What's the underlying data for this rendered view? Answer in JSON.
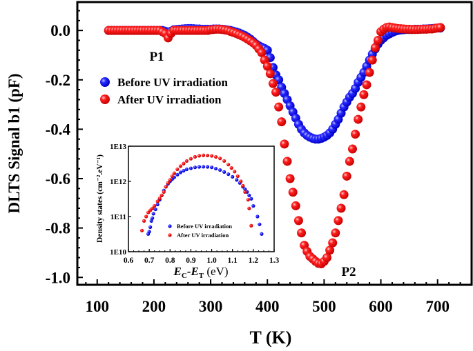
{
  "chart_data": [
    {
      "type": "scatter",
      "xlabel": "T (K)",
      "ylabel": "DLTS Signal b1 (pF)",
      "xlim": [
        65,
        760
      ],
      "ylim": [
        -1.03,
        0.115
      ],
      "xticks": [
        100,
        200,
        300,
        400,
        500,
        600,
        700
      ],
      "xtick_labels": [
        "100",
        "200",
        "300",
        "400",
        "500",
        "600",
        "700"
      ],
      "yticks": [
        0.0,
        -0.2,
        -0.4,
        -0.6,
        -0.8,
        -1.0
      ],
      "ytick_labels": [
        "0.0",
        "-0.2",
        "-0.4",
        "-0.6",
        "-0.8",
        "-1.0"
      ],
      "grid": false,
      "legend_position": "upper-left",
      "annotations": [
        {
          "text": "P1",
          "x": 225,
          "y": -0.1
        },
        {
          "text": "P2",
          "x": 530,
          "y": -0.96
        }
      ],
      "x": [
        120,
        125,
        130,
        135,
        140,
        145,
        150,
        155,
        160,
        165,
        170,
        175,
        180,
        185,
        190,
        195,
        200,
        205,
        210,
        215,
        220,
        225,
        230,
        235,
        240,
        245,
        250,
        255,
        260,
        265,
        270,
        275,
        280,
        285,
        290,
        295,
        300,
        305,
        310,
        315,
        320,
        325,
        330,
        335,
        340,
        345,
        350,
        355,
        360,
        365,
        370,
        375,
        380,
        385,
        390,
        395,
        400,
        405,
        410,
        415,
        420,
        425,
        430,
        435,
        440,
        445,
        450,
        455,
        460,
        465,
        470,
        475,
        480,
        485,
        490,
        495,
        500,
        505,
        510,
        515,
        520,
        525,
        530,
        535,
        540,
        545,
        550,
        555,
        560,
        565,
        570,
        575,
        580,
        585,
        590,
        595,
        600,
        605,
        610,
        615,
        620,
        625,
        630,
        635,
        640,
        645,
        650,
        655,
        660,
        665,
        670,
        675,
        680,
        685,
        690,
        695,
        700,
        705
      ],
      "series": [
        {
          "name": "Before UV irradiation",
          "color": "#1a1aff",
          "values": [
            0,
            0,
            0,
            0,
            0,
            0,
            0,
            0,
            0,
            0,
            0,
            0,
            0,
            0,
            0,
            0,
            0,
            0,
            0,
            0,
            -0.003,
            -0.008,
            -0.003,
            0.003,
            0.004,
            0.005,
            0.006,
            0.007,
            0.008,
            0.008,
            0.007,
            0.006,
            0.006,
            0.005,
            0.005,
            0.005,
            0.005,
            0.006,
            0.006,
            0.006,
            0.005,
            0.004,
            0.002,
            0,
            -0.003,
            -0.006,
            -0.01,
            -0.015,
            -0.02,
            -0.027,
            -0.035,
            -0.045,
            -0.055,
            -0.062,
            -0.068,
            -0.073,
            -0.08,
            -0.11,
            -0.15,
            -0.18,
            -0.2,
            -0.23,
            -0.255,
            -0.28,
            -0.305,
            -0.33,
            -0.355,
            -0.38,
            -0.4,
            -0.415,
            -0.425,
            -0.432,
            -0.437,
            -0.44,
            -0.44,
            -0.437,
            -0.432,
            -0.425,
            -0.415,
            -0.4,
            -0.38,
            -0.36,
            -0.335,
            -0.31,
            -0.29,
            -0.27,
            -0.255,
            -0.235,
            -0.21,
            -0.19,
            -0.17,
            -0.145,
            -0.12,
            -0.096,
            -0.075,
            -0.055,
            -0.04,
            -0.03,
            -0.02,
            -0.014,
            -0.008,
            -0.003,
            0,
            0.002,
            0.003,
            0.004,
            0.004,
            0.004,
            0.005,
            0.005,
            0.005,
            0.006,
            0.006,
            0.007,
            0.008,
            0.009,
            0.01,
            0.01
          ]
        },
        {
          "name": "After UV irradiation",
          "color": "#ff1a1a",
          "values": [
            0,
            0,
            0,
            0,
            0,
            0,
            0,
            0,
            0,
            0,
            0,
            0,
            0,
            0,
            0,
            0,
            0,
            0,
            0,
            -0.005,
            -0.012,
            -0.03,
            -0.012,
            0,
            0,
            0,
            0,
            0,
            0,
            0,
            0,
            0,
            0,
            0,
            0,
            0,
            0.003,
            0.004,
            0.005,
            0.005,
            0.004,
            0.002,
            0,
            -0.004,
            -0.008,
            -0.012,
            -0.017,
            -0.022,
            -0.028,
            -0.035,
            -0.042,
            -0.05,
            -0.06,
            -0.075,
            -0.09,
            -0.12,
            -0.145,
            -0.175,
            -0.215,
            -0.25,
            -0.31,
            -0.37,
            -0.46,
            -0.53,
            -0.6,
            -0.655,
            -0.71,
            -0.77,
            -0.82,
            -0.87,
            -0.895,
            -0.915,
            -0.925,
            -0.935,
            -0.943,
            -0.945,
            -0.935,
            -0.92,
            -0.89,
            -0.86,
            -0.82,
            -0.77,
            -0.72,
            -0.665,
            -0.59,
            -0.53,
            -0.48,
            -0.42,
            -0.36,
            -0.31,
            -0.26,
            -0.22,
            -0.17,
            -0.12,
            -0.07,
            -0.04,
            -0.005,
            0.005,
            0.012,
            0.014,
            0.012,
            0.01,
            0.008,
            0.007,
            0.006,
            0.005,
            0.005,
            0.004,
            0.004,
            0.004,
            0.005,
            0.005,
            0.005,
            0.006,
            0.006,
            0.008,
            0.01,
            0.012
          ]
        }
      ]
    },
    {
      "type": "scatter",
      "inset": true,
      "xlabel_parts": {
        "e1": "E",
        "sub1": "C",
        "dash": "-",
        "e2": "E",
        "sub2": "T",
        "unit": " (eV)"
      },
      "ylabel": "Density states (cm⁻².eV⁻¹)",
      "xlim": [
        0.6,
        1.3
      ],
      "ylim": [
        10000000000.0,
        10000000000000.0
      ],
      "yscale": "log",
      "xticks": [
        0.6,
        0.7,
        0.8,
        0.9,
        1.0,
        1.1,
        1.2,
        1.3
      ],
      "xtick_labels": [
        "0.6",
        "0.7",
        "0.8",
        "0.9",
        "1.0",
        "1.1",
        "1.2",
        "1.3"
      ],
      "yticks": [
        10000000000.0,
        100000000000.0,
        1000000000000.0,
        10000000000000.0
      ],
      "ytick_labels": [
        "1E10",
        "1E11",
        "1E12",
        "1E13"
      ],
      "legend_position": "bottom-center",
      "series": [
        {
          "name": "Before UV irradiation",
          "color": "#1a1aff",
          "x": [
            0.695,
            0.7,
            0.705,
            0.71,
            0.715,
            0.72,
            0.73,
            0.74,
            0.75,
            0.76,
            0.77,
            0.78,
            0.79,
            0.8,
            0.81,
            0.82,
            0.835,
            0.85,
            0.865,
            0.88,
            0.9,
            0.92,
            0.94,
            0.96,
            0.98,
            1.0,
            1.02,
            1.04,
            1.06,
            1.08,
            1.1,
            1.12,
            1.135,
            1.15,
            1.16,
            1.17,
            1.18,
            1.19,
            1.2,
            1.22,
            1.23,
            1.24
          ],
          "y": [
            32000000000.0,
            37000000000.0,
            50000000000.0,
            75000000000.0,
            90000000000.0,
            120000000000.0,
            160000000000.0,
            220000000000.0,
            300000000000.0,
            400000000000.0,
            550000000000.0,
            700000000000.0,
            850000000000.0,
            1000000000000.0,
            1150000000000.0,
            1300000000000.0,
            1550000000000.0,
            1800000000000.0,
            2000000000000.0,
            2200000000000.0,
            2350000000000.0,
            2500000000000.0,
            2580000000000.0,
            2600000000000.0,
            2580000000000.0,
            2500000000000.0,
            2300000000000.0,
            2100000000000.0,
            1850000000000.0,
            1600000000000.0,
            1350000000000.0,
            1100000000000.0,
            900000000000.0,
            700000000000.0,
            600000000000.0,
            500000000000.0,
            400000000000.0,
            320000000000.0,
            200000000000.0,
            100000000000.0,
            60000000000.0,
            32000000000.0
          ]
        },
        {
          "name": "After UV irradiation",
          "color": "#ff1a1a",
          "x": [
            0.665,
            0.675,
            0.685,
            0.695,
            0.705,
            0.715,
            0.725,
            0.74,
            0.75,
            0.76,
            0.77,
            0.78,
            0.79,
            0.8,
            0.81,
            0.82,
            0.835,
            0.85,
            0.865,
            0.88,
            0.9,
            0.92,
            0.94,
            0.96,
            0.98,
            1.0,
            1.02,
            1.04,
            1.06,
            1.08,
            1.095,
            1.11,
            1.125,
            1.14,
            1.15,
            1.16,
            1.175,
            1.18,
            1.19
          ],
          "y": [
            40000000000.0,
            75000000000.0,
            100000000000.0,
            130000000000.0,
            150000000000.0,
            170000000000.0,
            200000000000.0,
            270000000000.0,
            330000000000.0,
            400000000000.0,
            500000000000.0,
            700000000000.0,
            900000000000.0,
            1100000000000.0,
            1400000000000.0,
            1700000000000.0,
            2200000000000.0,
            2700000000000.0,
            3200000000000.0,
            3800000000000.0,
            4400000000000.0,
            5000000000000.0,
            5350000000000.0,
            5500000000000.0,
            5450000000000.0,
            5300000000000.0,
            4950000000000.0,
            4500000000000.0,
            3800000000000.0,
            3000000000000.0,
            2400000000000.0,
            1900000000000.0,
            1400000000000.0,
            1000000000000.0,
            750000000000.0,
            500000000000.0,
            300000000000.0,
            170000000000.0,
            55000000000.0
          ]
        }
      ]
    }
  ]
}
